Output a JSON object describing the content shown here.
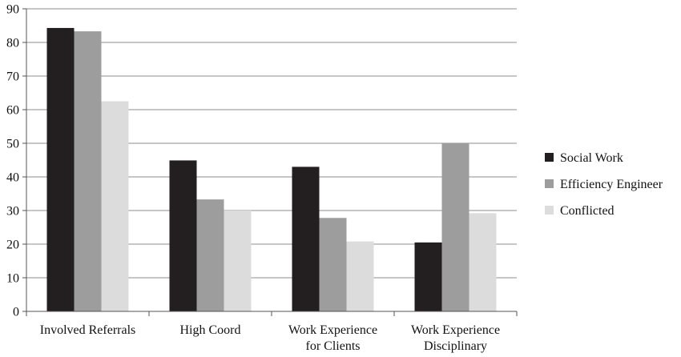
{
  "chart_data": {
    "type": "bar",
    "categories": [
      [
        "Involved Referrals"
      ],
      [
        "High Coord"
      ],
      [
        "Work Experience",
        "for Clients"
      ],
      [
        "Work Experience",
        "Disciplinary"
      ]
    ],
    "series": [
      {
        "name": "Social Work",
        "color": "#231f20",
        "values": [
          84.3,
          44.9,
          43.0,
          20.5
        ]
      },
      {
        "name": "Efficiency Engineer",
        "color": "#9d9d9d",
        "values": [
          83.3,
          33.3,
          27.8,
          50.0
        ]
      },
      {
        "name": "Conflicted",
        "color": "#dcdcdc",
        "values": [
          62.5,
          30.0,
          20.8,
          29.2
        ]
      }
    ],
    "yticks": [
      0,
      10,
      20,
      30,
      40,
      50,
      60,
      70,
      80,
      90
    ],
    "ylim": [
      0,
      90
    ],
    "grid": true,
    "legend_position": "right",
    "title": "",
    "xlabel": "",
    "ylabel": ""
  }
}
